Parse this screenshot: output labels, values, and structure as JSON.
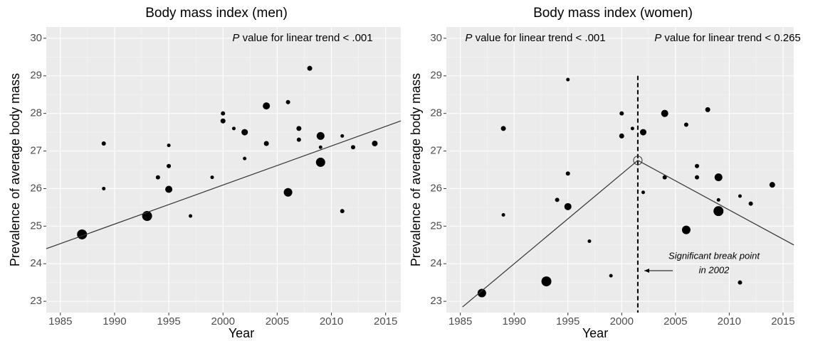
{
  "chart_data": [
    {
      "type": "scatter",
      "title": "Body mass index (men)",
      "x_label": "Year",
      "y_label": "Prevalence of average body mass",
      "annotations": [
        "P value for linear trend < .001"
      ],
      "color": "#000000",
      "background": "#ebebeb",
      "grid": true,
      "xlim": [
        1983.7,
        2016.4
      ],
      "xticks": [
        1985,
        1990,
        1995,
        2000,
        2005,
        2010,
        2015
      ],
      "ylim": [
        22.7,
        30.3
      ],
      "yticks": [
        23,
        24,
        25,
        26,
        27,
        28,
        29,
        30
      ],
      "x": [
        1987,
        1989,
        1989,
        1993,
        1994,
        1995,
        1995,
        1995,
        1997,
        1999,
        2000,
        2000,
        2001,
        2002,
        2002,
        2004,
        2004,
        2006,
        2006,
        2007,
        2007,
        2008,
        2009,
        2009,
        2009,
        2011,
        2011,
        2012,
        2014
      ],
      "values": [
        24.78,
        27.2,
        26.0,
        25.27,
        26.3,
        27.15,
        26.6,
        25.98,
        25.27,
        26.3,
        28.0,
        27.8,
        27.6,
        27.5,
        26.8,
        28.2,
        27.2,
        28.3,
        25.9,
        27.6,
        27.3,
        29.2,
        27.4,
        27.1,
        26.7,
        27.4,
        25.4,
        27.1,
        27.2
      ],
      "sizes": [
        7,
        3,
        2.5,
        7,
        3,
        2.5,
        3,
        5,
        2.5,
        2.5,
        3,
        3.5,
        2.5,
        4.5,
        2.5,
        5,
        3.5,
        3,
        6,
        3.5,
        3,
        3.5,
        5.5,
        2.5,
        6.5,
        2.5,
        3,
        3,
        4
      ],
      "lines": [
        {
          "x": [
            1983.7,
            2016.4
          ],
          "values": [
            24.4,
            27.8
          ]
        }
      ]
    },
    {
      "type": "scatter",
      "title": "Body mass index (women)",
      "x_label": "Year",
      "y_label": "Prevalence of average body mass",
      "annotations": [
        "P value for linear trend < .001",
        "P value for linear trend < 0.265"
      ],
      "break_label": [
        "Significant break point",
        "in 2002"
      ],
      "color": "#000000",
      "background": "#ebebeb",
      "grid": true,
      "xlim": [
        1983.7,
        2016.0
      ],
      "xticks": [
        1985,
        1990,
        1995,
        2000,
        2005,
        2010,
        2015
      ],
      "ylim": [
        22.7,
        30.3
      ],
      "yticks": [
        23,
        24,
        25,
        26,
        27,
        28,
        29,
        30
      ],
      "x": [
        1987,
        1989,
        1989,
        1993,
        1994,
        1995,
        1995,
        1995,
        1997,
        1999,
        2000,
        2000,
        2001,
        2002,
        2002,
        2004,
        2004,
        2006,
        2006,
        2007,
        2007,
        2008,
        2009,
        2009,
        2009,
        2011,
        2011,
        2012,
        2014
      ],
      "values": [
        23.22,
        27.6,
        25.3,
        23.53,
        25.7,
        28.9,
        26.4,
        25.52,
        24.6,
        23.68,
        28.0,
        27.4,
        27.6,
        27.5,
        25.9,
        28.0,
        26.3,
        27.7,
        24.9,
        26.6,
        26.3,
        28.1,
        26.3,
        25.7,
        25.4,
        25.8,
        23.5,
        25.6,
        26.1
      ],
      "sizes": [
        6,
        3.5,
        2.5,
        7,
        3,
        2.5,
        3,
        5,
        2.5,
        2.5,
        3,
        3.5,
        2.5,
        4.5,
        2.5,
        5,
        3,
        3,
        6,
        3,
        3,
        3.5,
        5.5,
        2.5,
        7,
        2.5,
        3,
        3,
        4
      ],
      "lines": [
        {
          "x": [
            1985.2,
            2001.5,
            2016.0
          ],
          "values": [
            22.85,
            26.75,
            24.5
          ]
        }
      ],
      "break_point": {
        "x": 2001.5,
        "y": 26.75
      },
      "break_line": {
        "x": 2001.5,
        "top": 29.0
      }
    }
  ]
}
